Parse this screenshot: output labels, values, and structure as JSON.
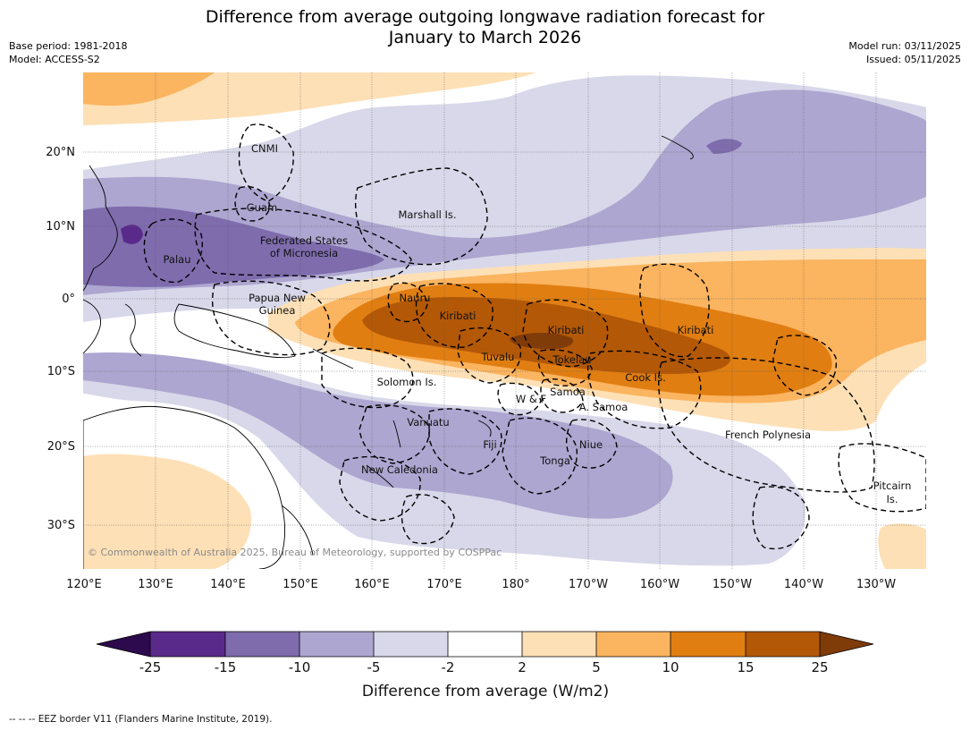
{
  "title": {
    "line1": "Difference from average outgoing longwave radiation forecast for",
    "line2": "January to March 2026"
  },
  "meta": {
    "base_period": "Base period: 1981-2018",
    "model": "Model: ACCESS-S2",
    "model_run": "Model run: 03/11/2025",
    "issued": "Issued: 05/11/2025"
  },
  "map": {
    "lat_labels": [
      "20°N",
      "10°N",
      "0°",
      "10°S",
      "20°S",
      "30°S"
    ],
    "lon_labels": [
      "120°E",
      "130°E",
      "140°E",
      "150°E",
      "160°E",
      "170°E",
      "180°",
      "170°W",
      "160°W",
      "150°W",
      "140°W",
      "130°W"
    ],
    "places": [
      "CNMI",
      "Guam",
      "Marshall Is.",
      "Federated States",
      "of Micronesia",
      "Palau",
      "Papua New",
      "Guinea",
      "Nauru",
      "Kiribati",
      "Kiribati",
      "Kiribati",
      "Tuvalu",
      "Tokelau",
      "Cook Is.",
      "Solomon Is.",
      "W & F",
      "Samoa",
      "A. Samoa",
      "Vanuatu",
      "Fiji",
      "Niue",
      "Tonga",
      "French Polynesia",
      "New Caledonia",
      "Pitcairn",
      "Is."
    ],
    "copyright": "© Commonwealth of Australia 2025, Bureau of Meteorology, supported by COSPPac"
  },
  "colorbar": {
    "ticks": [
      "-25",
      "-15",
      "-10",
      "-5",
      "-2",
      "2",
      "5",
      "10",
      "15",
      "25"
    ],
    "label": "Difference from average (W/m2)",
    "colors": [
      "#2d0a4e",
      "#5a2a8a",
      "#7e6cad",
      "#ada6d0",
      "#d9d8ea",
      "#ffffff",
      "#fde0b6",
      "#fbb45f",
      "#e07e12",
      "#b35806",
      "#7f3b08"
    ]
  },
  "footnote": "--  --  -- EEZ border V11 (Flanders Marine Institute, 2019)."
}
